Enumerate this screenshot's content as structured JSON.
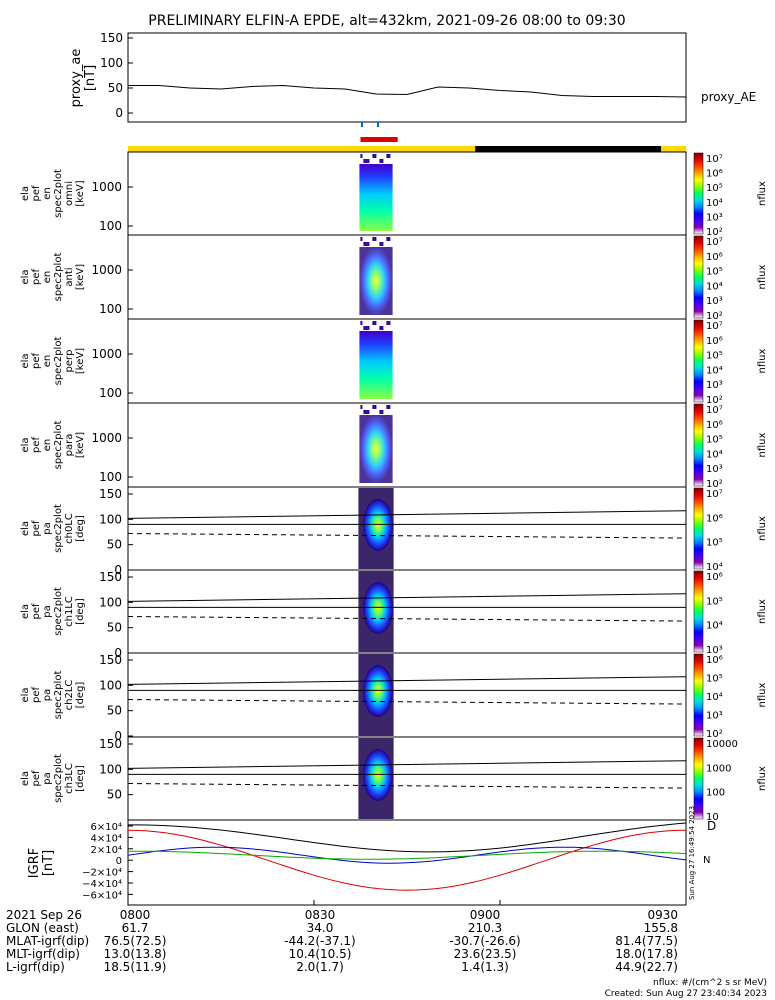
{
  "title": "PRELIMINARY ELFIN-A EPDE, alt=432km, 2021-09-26 08:00 to 09:30",
  "proxy_ae": {
    "ylabel_1": "proxy_ae",
    "ylabel_2": "[nT]",
    "series_label": "proxy_AE",
    "ticks": [
      "150",
      "100",
      "50",
      "0"
    ]
  },
  "energy_panels": [
    {
      "ylabel": [
        "ela",
        "pef",
        "en",
        "spec2plot",
        "omni"
      ],
      "unit": "[keV]",
      "ticks": [
        "1000",
        "100"
      ]
    },
    {
      "ylabel": [
        "ela",
        "pef",
        "en",
        "spec2plot",
        "anti"
      ],
      "unit": "[keV]",
      "ticks": [
        "1000",
        "100"
      ]
    },
    {
      "ylabel": [
        "ela",
        "pef",
        "en",
        "spec2plot",
        "perp"
      ],
      "unit": "[keV]",
      "ticks": [
        "1000",
        "100"
      ]
    },
    {
      "ylabel": [
        "ela",
        "pef",
        "en",
        "spec2plot",
        "para"
      ],
      "unit": "[keV]",
      "ticks": [
        "1000",
        "100"
      ]
    }
  ],
  "pa_panels": [
    {
      "ylabel": [
        "ela",
        "pef",
        "pa",
        "spec2plot",
        "ch0LC"
      ],
      "unit": "[deg]",
      "ticks": [
        "150",
        "100",
        "50",
        "0"
      ]
    },
    {
      "ylabel": [
        "ela",
        "pef",
        "pa",
        "spec2plot",
        "ch1LC"
      ],
      "unit": "[deg]",
      "ticks": [
        "150",
        "100",
        "50",
        "0"
      ]
    },
    {
      "ylabel": [
        "ela",
        "pef",
        "pa",
        "spec2plot",
        "ch2LC"
      ],
      "unit": "[deg]",
      "ticks": [
        "150",
        "100",
        "50",
        "0"
      ]
    },
    {
      "ylabel": [
        "ela",
        "pef",
        "pa",
        "spec2plot",
        "ch3LC"
      ],
      "unit": "[deg]",
      "ticks": [
        "150",
        "100",
        "50"
      ]
    }
  ],
  "colorbars": [
    {
      "label": "nflux",
      "ticks": [
        "10⁷",
        "10⁶",
        "10⁵",
        "10⁴",
        "10³",
        "10²"
      ]
    },
    {
      "label": "nflux",
      "ticks": [
        "10⁷",
        "10⁶",
        "10⁵",
        "10⁴",
        "10³",
        "10²"
      ]
    },
    {
      "label": "nflux",
      "ticks": [
        "10⁷",
        "10⁶",
        "10⁵",
        "10⁴",
        "10³",
        "10²"
      ]
    },
    {
      "label": "nflux",
      "ticks": [
        "10⁷",
        "10⁶",
        "10⁵",
        "10⁴",
        "10³",
        "10²"
      ]
    },
    {
      "label": "nflux",
      "ticks": [
        "10⁷",
        "10⁶",
        "10⁵",
        "10⁴"
      ]
    },
    {
      "label": "nflux",
      "ticks": [
        "10⁶",
        "10⁵",
        "10⁴",
        "10³"
      ]
    },
    {
      "label": "nflux",
      "ticks": [
        "10⁶",
        "10⁵",
        "10⁴",
        "10³",
        "10²"
      ]
    },
    {
      "label": "nflux",
      "ticks": [
        "10000",
        "1000",
        "100",
        "10"
      ]
    }
  ],
  "igrf": {
    "ylabel_1": "IGRF",
    "ylabel_2": "[nT]",
    "ticks": [
      "6×10⁴",
      "4×10⁴",
      "2×10⁴",
      "0",
      "−2×10⁴",
      "−4×10⁴",
      "−6×10⁴"
    ],
    "legend": [
      "D",
      "N"
    ],
    "side_note": "Sun Aug 27 16:49:54 2023"
  },
  "ephemeris": {
    "rows": [
      [
        "2021 Sep 26",
        "0800",
        "0830",
        "0900",
        "0930"
      ],
      [
        "GLON (east)",
        "61.7",
        "34.0",
        "210.3",
        "155.8"
      ],
      [
        "MLAT-igrf(dip)",
        "76.5(72.5)",
        "-44.2(-37.1)",
        "-30.7(-26.6)",
        "81.4(77.5)"
      ],
      [
        "MLT-igrf(dip)",
        "13.0(13.8)",
        "10.4(10.5)",
        "23.6(23.5)",
        "18.0(17.8)"
      ],
      [
        "L-igrf(dip)",
        "18.5(11.9)",
        "2.0(1.7)",
        "1.4(1.3)",
        "44.9(22.7)"
      ]
    ]
  },
  "footer": {
    "units": "nflux: #/(cm^2 s sr MeV)",
    "created": "Created: Sun Aug 27 23:40:34 2023"
  },
  "colors": {
    "science_bar": "#ffd700",
    "eclipse_bar": "#000000",
    "zone_marker": "#dd0000",
    "igrf_red": "#dd0000",
    "igrf_blue": "#0000cc",
    "igrf_green": "#00aa00"
  },
  "chart_data": {
    "type": "heatmap",
    "x_range": [
      "2021-09-26 08:00",
      "2021-09-26 09:30"
    ],
    "x_ticks": [
      "0800",
      "0830",
      "0900",
      "0930"
    ],
    "proxy_ae": {
      "times_min": [
        0,
        5,
        10,
        15,
        20,
        25,
        30,
        35,
        40,
        45,
        50,
        55,
        60,
        65,
        70,
        75,
        80,
        85,
        90
      ],
      "values_nT": [
        55,
        55,
        50,
        48,
        53,
        55,
        50,
        48,
        38,
        37,
        52,
        50,
        45,
        42,
        35,
        33,
        33,
        33,
        32
      ],
      "ylim": [
        0,
        150
      ]
    },
    "science_zone_minutes": [
      37.5,
      43.5
    ],
    "state_bar": [
      {
        "from_min": 0,
        "to_min": 56,
        "state": "sunlit"
      },
      {
        "from_min": 56,
        "to_min": 86,
        "state": "eclipse"
      },
      {
        "from_min": 86,
        "to_min": 90,
        "state": "sunlit"
      }
    ],
    "energy_ylim_keV": [
      60,
      6000
    ],
    "pa_ylim_deg": [
      0,
      180
    ],
    "loss_cone_lines": {
      "solid_start": 102,
      "solid_end": 117,
      "dashed_start": 72,
      "dashed_end": 63,
      "flat": 90
    },
    "data_window_min": [
      37,
      43
    ]
  }
}
